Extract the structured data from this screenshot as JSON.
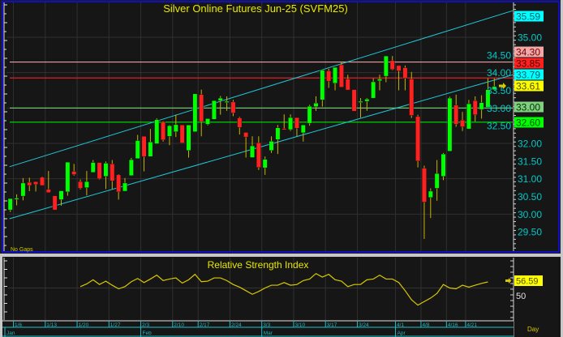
{
  "chart_data": [
    {
      "type": "candlestick",
      "title": "Silver Online Futures Jun-25 (SVFM25)",
      "note": "No Gaps",
      "periodicity": "Day",
      "ylim": [
        29.2,
        35.9
      ],
      "grid": true,
      "y_ticks": [
        "35.00",
        "34.50",
        "34.00",
        "33.50",
        "33.00",
        "32.50",
        "32.00",
        "31.50",
        "31.00",
        "30.50",
        "30.00",
        "29.50"
      ],
      "date_ticks": [
        {
          "label": "1/6",
          "bar": 1
        },
        {
          "label": "1/13",
          "bar": 6
        },
        {
          "label": "1/20",
          "bar": 11
        },
        {
          "label": "1/27",
          "bar": 16
        },
        {
          "label": "2/3",
          "bar": 21
        },
        {
          "label": "2/10",
          "bar": 26
        },
        {
          "label": "2/17",
          "bar": 30
        },
        {
          "label": "2/24",
          "bar": 35
        },
        {
          "label": "3/3",
          "bar": 40
        },
        {
          "label": "3/10",
          "bar": 45
        },
        {
          "label": "3/17",
          "bar": 50
        },
        {
          "label": "3/24",
          "bar": 55
        },
        {
          "label": "4/1",
          "bar": 61
        },
        {
          "label": "4/8",
          "bar": 65
        },
        {
          "label": "4/16",
          "bar": 69
        },
        {
          "label": "4/21",
          "bar": 72
        }
      ],
      "month_ticks": [
        {
          "label": "Jan",
          "bar": 0
        },
        {
          "label": "Feb",
          "bar": 21
        },
        {
          "label": "Mar",
          "bar": 40
        },
        {
          "label": "Apr",
          "bar": 61
        }
      ],
      "ohlc": [
        [
          30.12,
          30.44,
          30.06,
          30.44
        ],
        [
          30.44,
          30.56,
          30.25,
          30.45
        ],
        [
          30.51,
          31.02,
          30.39,
          30.88
        ],
        [
          30.9,
          31.03,
          30.65,
          30.81
        ],
        [
          30.92,
          30.92,
          30.64,
          30.84
        ],
        [
          31.04,
          31.06,
          30.81,
          30.81
        ],
        [
          30.7,
          31.22,
          30.61,
          30.61
        ],
        [
          30.52,
          30.52,
          30.12,
          30.12
        ],
        [
          30.41,
          30.66,
          30.24,
          30.66
        ],
        [
          30.63,
          31.47,
          30.52,
          31.47
        ],
        [
          31.21,
          31.42,
          31.09,
          31.12
        ],
        [
          30.92,
          30.98,
          30.7,
          30.73
        ],
        [
          30.75,
          31.22,
          30.53,
          30.92
        ],
        [
          31.18,
          31.53,
          31.18,
          31.46
        ],
        [
          31.46,
          31.46,
          30.98,
          31.0
        ],
        [
          31.07,
          31.49,
          30.71,
          31.44
        ],
        [
          31.42,
          31.53,
          30.71,
          30.94
        ],
        [
          31.11,
          31.13,
          30.41,
          30.63
        ],
        [
          30.65,
          31.02,
          30.65,
          30.88
        ],
        [
          31.09,
          31.59,
          31.09,
          31.54
        ],
        [
          31.57,
          32.24,
          31.57,
          32.08
        ],
        [
          32.2,
          32.2,
          31.21,
          31.63
        ],
        [
          31.63,
          32.41,
          31.63,
          32.04
        ],
        [
          31.99,
          32.71,
          31.99,
          32.67
        ],
        [
          32.6,
          32.63,
          32.05,
          32.1
        ],
        [
          32.2,
          32.52,
          31.95,
          32.5
        ],
        [
          32.33,
          32.81,
          32.18,
          32.53
        ],
        [
          32.52,
          32.52,
          32.01,
          32.01
        ],
        [
          31.8,
          32.52,
          31.6,
          32.52
        ],
        [
          32.33,
          33.4,
          32.33,
          33.4
        ],
        [
          33.38,
          33.52,
          32.2,
          32.62
        ],
        [
          32.54,
          32.7,
          32.51,
          32.7
        ],
        [
          32.68,
          33.21,
          32.68,
          33.21
        ],
        [
          33.21,
          33.34,
          32.81,
          33.28
        ],
        [
          33.17,
          33.33,
          32.92,
          33.19
        ],
        [
          33.17,
          33.23,
          32.77,
          32.86
        ],
        [
          32.72,
          32.75,
          32.25,
          32.45
        ],
        [
          32.31,
          32.31,
          31.6,
          32.18
        ],
        [
          31.6,
          32.2,
          31.6,
          31.93
        ],
        [
          32.02,
          32.2,
          31.25,
          31.32
        ],
        [
          31.31,
          31.63,
          31.11,
          31.55
        ],
        [
          31.8,
          32.2,
          31.73,
          32.06
        ],
        [
          32.11,
          32.52,
          31.7,
          32.44
        ],
        [
          32.42,
          32.82,
          32.39,
          32.39
        ],
        [
          32.39,
          32.82,
          32.35,
          32.73
        ],
        [
          32.73,
          32.73,
          32.2,
          32.43
        ],
        [
          32.3,
          32.52,
          32.05,
          32.52
        ],
        [
          32.57,
          33.09,
          32.5,
          33.05
        ],
        [
          33.04,
          33.33,
          32.92,
          33.14
        ],
        [
          33.23,
          34.07,
          33.04,
          34.07
        ],
        [
          34.05,
          34.11,
          33.57,
          33.76
        ],
        [
          33.7,
          34.15,
          33.5,
          34.15
        ],
        [
          34.22,
          34.3,
          33.59,
          33.59
        ],
        [
          33.82,
          33.94,
          33.51,
          33.51
        ],
        [
          33.52,
          33.52,
          32.91,
          32.91
        ],
        [
          33.16,
          33.28,
          32.73,
          33.19
        ],
        [
          33.19,
          33.28,
          32.92,
          33.25
        ],
        [
          33.28,
          33.84,
          33.28,
          33.74
        ],
        [
          33.77,
          33.94,
          33.5,
          33.82
        ],
        [
          33.9,
          34.47,
          33.73,
          34.47
        ],
        [
          34.34,
          34.47,
          34.07,
          34.09
        ],
        [
          34.2,
          34.2,
          33.5,
          34.05
        ],
        [
          34.14,
          34.2,
          33.5,
          33.84
        ],
        [
          33.82,
          34.02,
          32.72,
          32.79
        ],
        [
          32.76,
          32.81,
          31.32,
          31.5
        ],
        [
          31.3,
          31.37,
          29.3,
          30.34
        ],
        [
          30.47,
          30.73,
          29.89,
          30.65
        ],
        [
          30.73,
          31.53,
          30.38,
          31.15
        ],
        [
          31.07,
          31.73,
          30.96,
          31.7
        ],
        [
          31.78,
          33.32,
          31.78,
          33.28
        ],
        [
          33.08,
          33.38,
          32.47,
          32.54
        ],
        [
          32.66,
          32.89,
          32.35,
          32.47
        ],
        [
          32.41,
          33.23,
          32.41,
          33.12
        ],
        [
          33.21,
          33.33,
          32.62,
          32.81
        ],
        [
          32.96,
          33.36,
          32.7,
          33.15
        ],
        [
          33.02,
          33.84,
          33.02,
          33.52
        ],
        [
          33.52,
          33.84,
          33.5,
          33.61
        ]
      ],
      "trendlines": [
        {
          "name": "channel-upper",
          "color": "#20c8d8",
          "start": {
            "bar": 0,
            "price": 31.34
          },
          "end_price": 35.59
        },
        {
          "name": "channel-lower",
          "color": "#20c8d8",
          "start": {
            "bar": 0,
            "price": 29.87
          },
          "end_price": 33.79
        }
      ],
      "horizontal_lines": [
        {
          "price": 34.3,
          "label": "34.30",
          "color": "#e8a0a0",
          "text": "#600000"
        },
        {
          "price": 33.85,
          "label": "33.85",
          "color": "#e02020",
          "text": "#400000"
        },
        {
          "price": 33.0,
          "label": "33.00",
          "color": "#70c070",
          "text": "#003000"
        },
        {
          "price": 32.6,
          "label": "32.60",
          "color": "#00e000",
          "text": "#003000"
        }
      ],
      "price_markers": [
        {
          "label": "35.59",
          "bg": "#00ffff",
          "fg": "#006070"
        },
        {
          "label": "34.30",
          "bg": "#f0a8a8",
          "fg": "#700000"
        },
        {
          "label": "33.85",
          "bg": "#ff2020",
          "fg": "#500000"
        },
        {
          "label": "33.79",
          "bg": "#00ffff",
          "fg": "#006070"
        },
        {
          "label": "33.61",
          "bg": "#ffff00",
          "fg": "#505000"
        },
        {
          "label": "33.00",
          "bg": "#80d080",
          "fg": "#003000"
        },
        {
          "label": "32.60",
          "bg": "#00ff00",
          "fg": "#005000"
        }
      ],
      "last_price": "33.61",
      "colors": {
        "up": "#00ff00",
        "down": "#ff2020",
        "wick": "#c8b400",
        "axis_text": "#00c8c8",
        "title": "#e8e800",
        "background": "#161616",
        "grid": "#303030"
      }
    },
    {
      "type": "line",
      "title": "Relative Strength Index",
      "ylim": [
        14,
        83
      ],
      "reference_label": "50",
      "reference_value": 50,
      "last_value_label": "56.59",
      "start_bar": 12,
      "values": [
        51.5,
        54.4,
        58.9,
        53.8,
        57.4,
        53.0,
        49.1,
        51.5,
        56.8,
        60.3,
        55.9,
        59.7,
        63.9,
        58.0,
        59.7,
        60.9,
        55.3,
        58.9,
        64.8,
        56.8,
        57.4,
        60.9,
        60.9,
        58.0,
        53.8,
        50.9,
        47.1,
        43.2,
        46.2,
        50.0,
        53.0,
        53.0,
        55.9,
        53.0,
        53.8,
        58.0,
        59.7,
        65.6,
        61.8,
        64.8,
        58.9,
        57.4,
        51.5,
        53.8,
        53.8,
        58.9,
        59.7,
        63.9,
        59.7,
        59.7,
        55.9,
        47.1,
        37.3,
        31.4,
        35.3,
        39.1,
        44.1,
        53.8,
        50.0,
        49.1,
        53.0,
        50.9,
        53.0,
        55.0,
        56.59
      ],
      "color": "#d8c800"
    }
  ]
}
